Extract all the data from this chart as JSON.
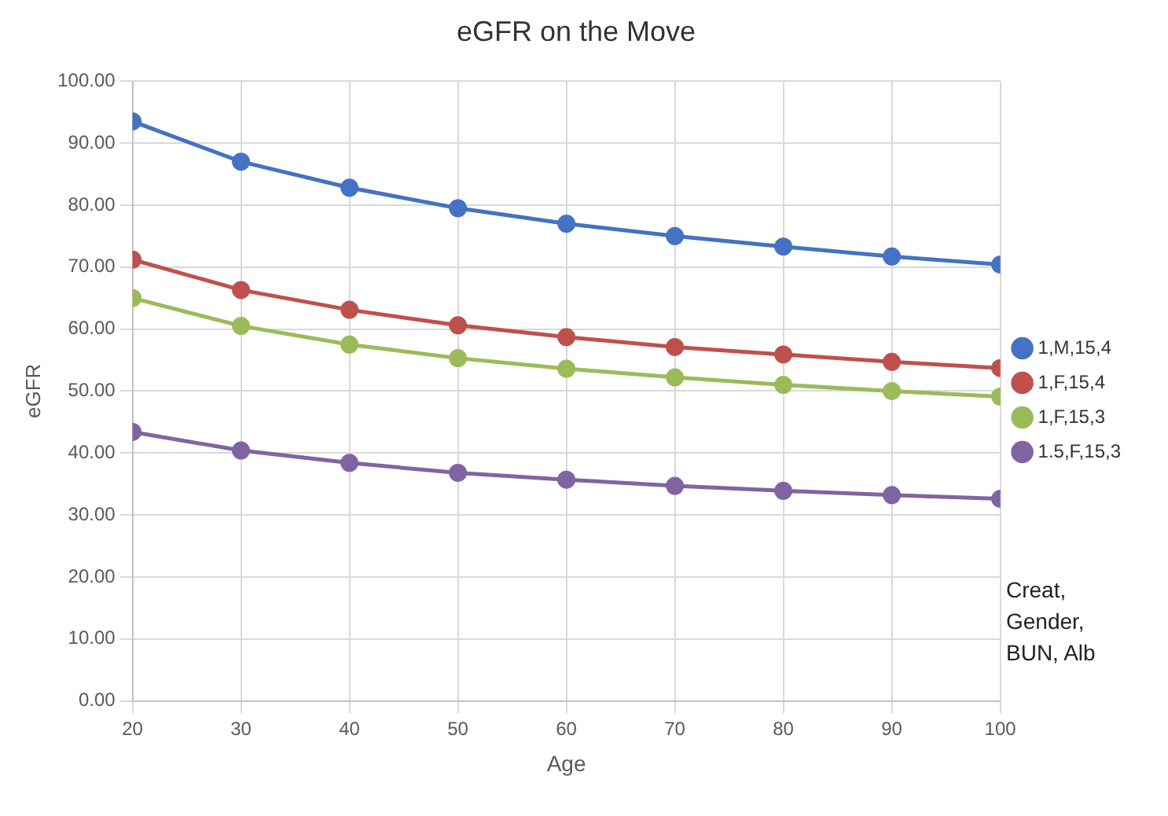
{
  "chart_data": {
    "type": "line",
    "title": "eGFR on the Move",
    "xlabel": "Age",
    "ylabel": "eGFR",
    "x": [
      20,
      30,
      40,
      50,
      60,
      70,
      80,
      90,
      100
    ],
    "series": [
      {
        "name": "1,M,15,4",
        "color": "#4472c4",
        "values": [
          93.5,
          87,
          82.8,
          79.5,
          77,
          75,
          73.3,
          71.7,
          70.4
        ]
      },
      {
        "name": "1,F,15,4",
        "color": "#c0504d",
        "values": [
          71.2,
          66.3,
          63.1,
          60.6,
          58.7,
          57.1,
          55.9,
          54.7,
          53.7
        ]
      },
      {
        "name": "1,F,15,3",
        "color": "#9bbb59",
        "values": [
          65,
          60.5,
          57.5,
          55.3,
          53.6,
          52.2,
          51,
          50,
          49.1
        ]
      },
      {
        "name": "1.5,F,15,3",
        "color": "#8064a2",
        "values": [
          43.4,
          40.4,
          38.4,
          36.8,
          35.7,
          34.7,
          33.9,
          33.2,
          32.6
        ]
      }
    ],
    "xlim": [
      20,
      100
    ],
    "xticks": [
      20,
      30,
      40,
      50,
      60,
      70,
      80,
      90,
      100
    ],
    "ylim": [
      0,
      100
    ],
    "yticks": [
      {
        "value": 0,
        "label": "0.00"
      },
      {
        "value": 10,
        "label": "10.00"
      },
      {
        "value": 20,
        "label": "20.00"
      },
      {
        "value": 30,
        "label": "30.00"
      },
      {
        "value": 40,
        "label": "40.00"
      },
      {
        "value": 50,
        "label": "50.00"
      },
      {
        "value": 60,
        "label": "60.00"
      },
      {
        "value": 70,
        "label": "70.00"
      },
      {
        "value": 80,
        "label": "80.00"
      },
      {
        "value": 90,
        "label": "90.00"
      },
      {
        "value": 100,
        "label": "100.00"
      }
    ],
    "grid": true,
    "legend": "right",
    "marker": "circle",
    "line_style": "solid",
    "annotations": [
      "Creat, Gender, BUN, Alb"
    ]
  }
}
